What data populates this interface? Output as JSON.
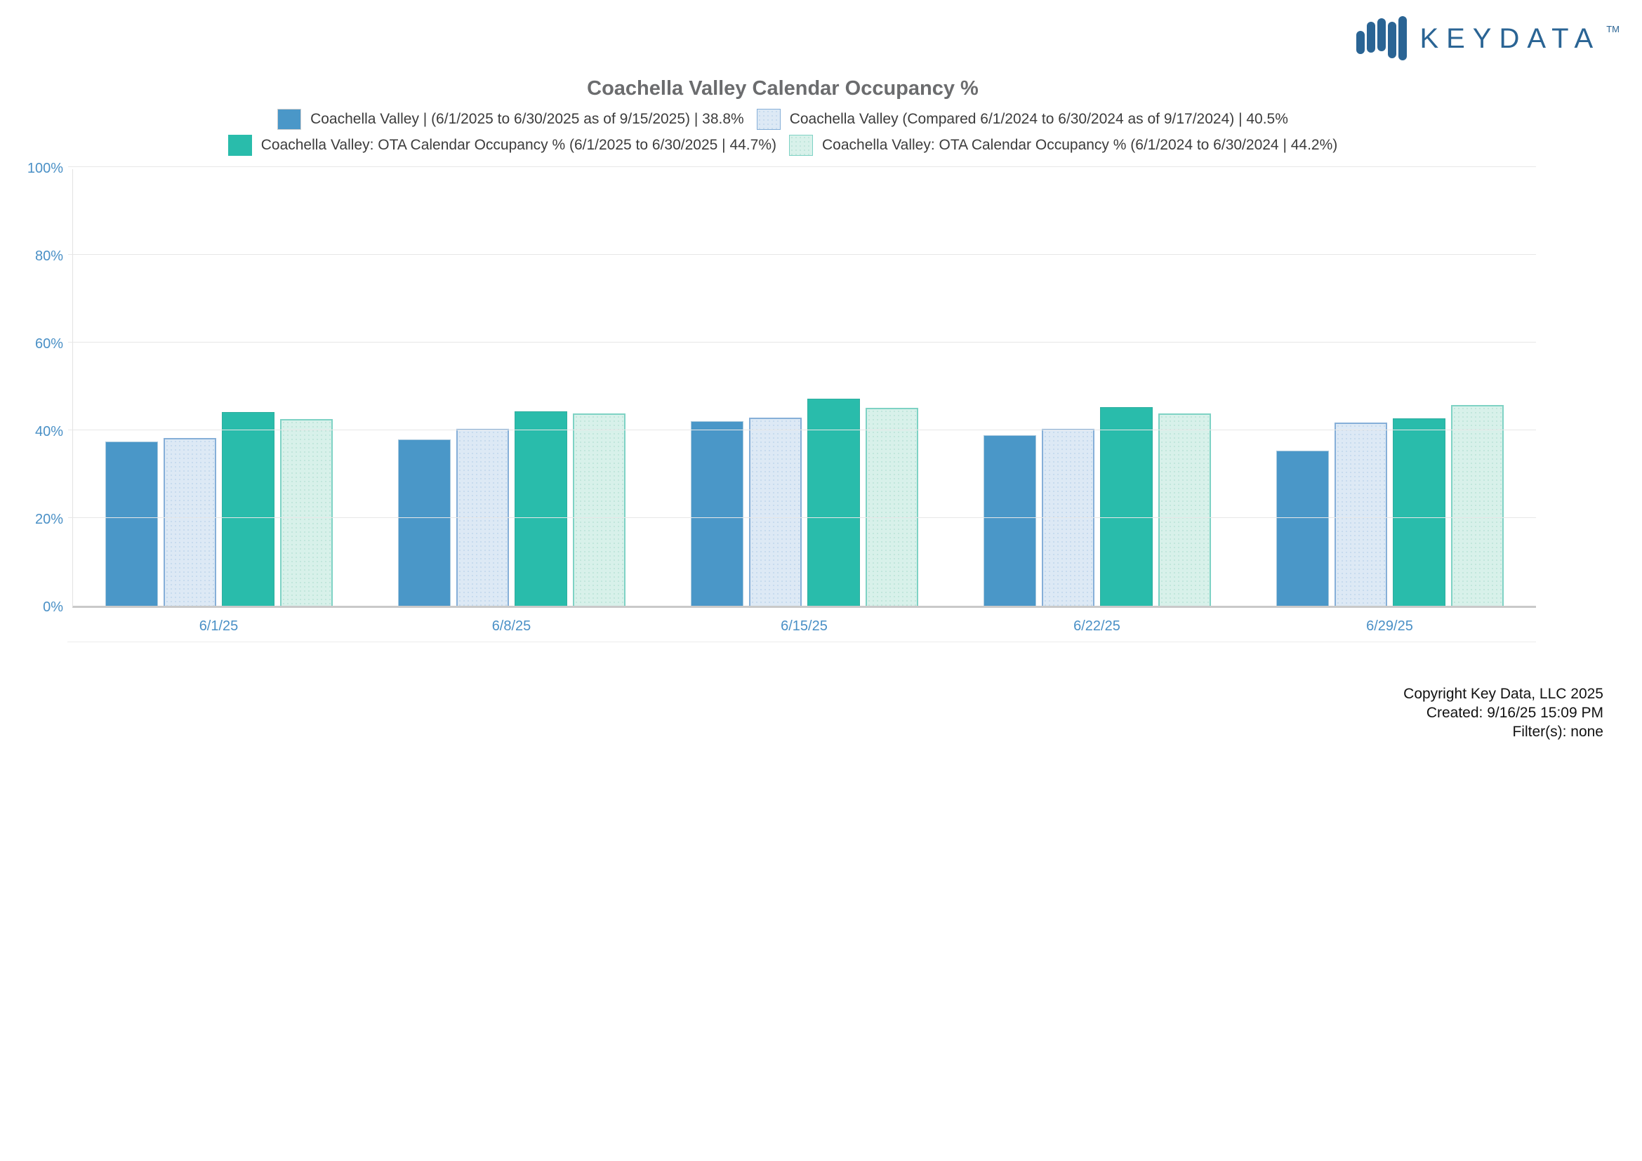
{
  "logo": {
    "text": "KEYDATA",
    "tm": "TM",
    "color": "#2a6494"
  },
  "chart_data": {
    "type": "bar",
    "title": "Coachella Valley Calendar Occupancy %",
    "categories": [
      "6/1/25",
      "6/8/25",
      "6/15/25",
      "6/22/25",
      "6/29/25"
    ],
    "series": [
      {
        "name": "Coachella Valley | (6/1/2025 to 6/30/2025 as of 9/15/2025) | 38.8%",
        "color": "#4a97c8",
        "border": "#aac9de",
        "border_width": 1,
        "swatch_border": "#cfcfcf",
        "values": [
          37.5,
          37.9,
          42.1,
          38.9,
          35.3
        ]
      },
      {
        "name": "Coachella Valley (Compared 6/1/2024 to 6/30/2024 as of 9/17/2024) | 40.5%",
        "color": "#dde9f5",
        "border": "#86afd8",
        "border_width": 2,
        "swatch_border": "#86afd8",
        "pattern": "#c6daee",
        "values": [
          38.2,
          40.3,
          42.9,
          40.3,
          41.8
        ]
      },
      {
        "name": "Coachella Valley: OTA Calendar Occupancy % (6/1/2025 to 6/30/2025 | 44.7%)",
        "color": "#29bcab",
        "border": "#2fae9f",
        "border_width": 1,
        "swatch_border": "#29bcab",
        "values": [
          44.2,
          44.3,
          47.2,
          45.3,
          42.8
        ]
      },
      {
        "name": "Coachella Valley: OTA Calendar Occupancy % (6/1/2024 to 6/30/2024 | 44.2%)",
        "color": "#d8f1ea",
        "border": "#7ed2c4",
        "border_width": 2,
        "swatch_border": "#7ed2c4",
        "pattern": "#c0e6db",
        "values": [
          42.6,
          43.8,
          45.2,
          43.9,
          45.7
        ]
      }
    ],
    "ylim": [
      0,
      100
    ],
    "yticks": [
      0,
      20,
      40,
      60,
      80,
      100
    ],
    "ytick_format": "percent",
    "xlabel": "",
    "ylabel": "",
    "grid": true,
    "legend_position": "top"
  },
  "footer": {
    "lines": [
      "Copyright Key Data, LLC 2025",
      "Created: 9/16/25 15:09 PM",
      "Filter(s): none"
    ]
  }
}
